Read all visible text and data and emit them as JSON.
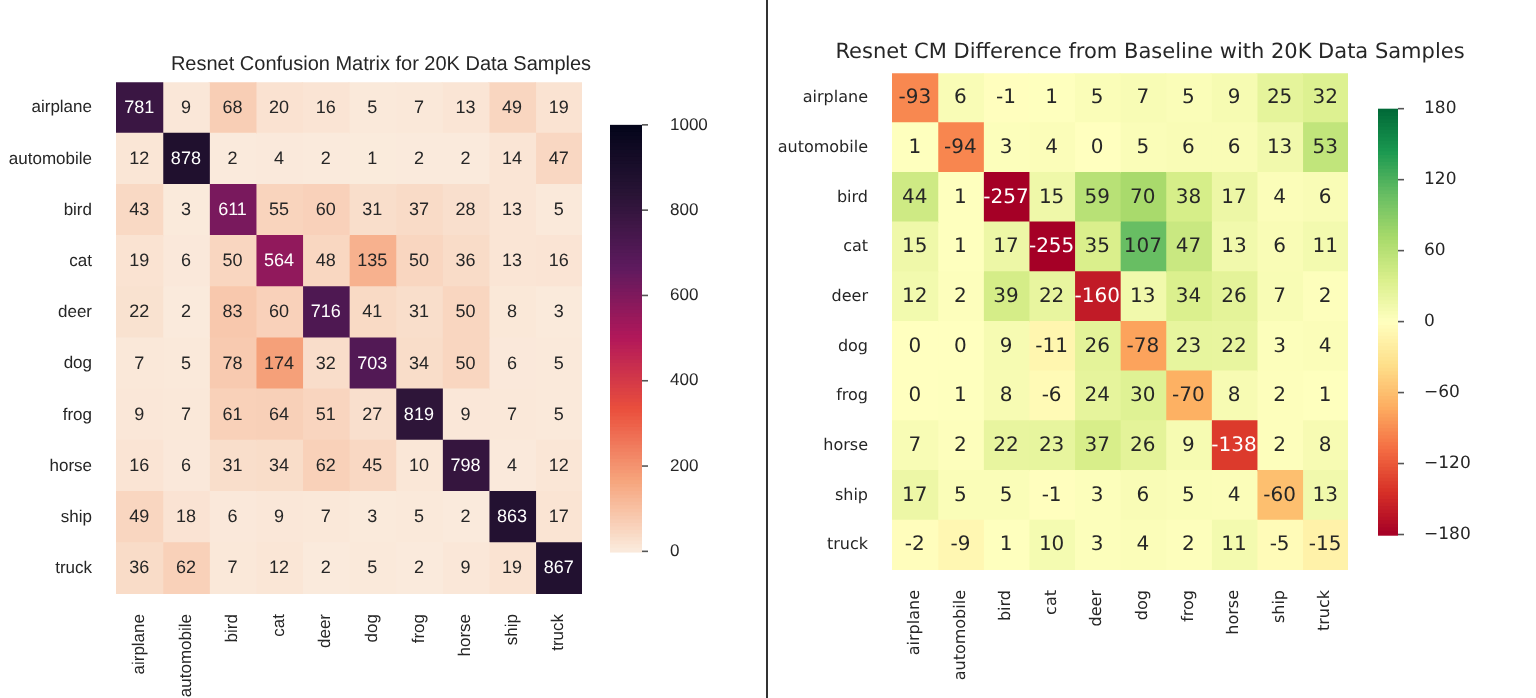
{
  "chart_data": [
    {
      "type": "heatmap",
      "title": "Resnet Confusion Matrix for 20K Data Samples",
      "categories": [
        "airplane",
        "automobile",
        "bird",
        "cat",
        "deer",
        "dog",
        "frog",
        "horse",
        "ship",
        "truck"
      ],
      "y_categories": [
        "airplane",
        "automobile",
        "bird",
        "cat",
        "deer",
        "dog",
        "frog",
        "horse",
        "ship",
        "truck"
      ],
      "cells": [
        [
          781,
          9,
          68,
          20,
          16,
          5,
          7,
          13,
          49,
          19
        ],
        [
          12,
          878,
          2,
          4,
          2,
          1,
          2,
          2,
          14,
          47
        ],
        [
          43,
          3,
          611,
          55,
          60,
          31,
          37,
          28,
          13,
          5
        ],
        [
          19,
          6,
          50,
          564,
          48,
          135,
          50,
          36,
          13,
          16
        ],
        [
          22,
          2,
          83,
          60,
          716,
          41,
          31,
          50,
          8,
          3
        ],
        [
          7,
          5,
          78,
          174,
          32,
          703,
          34,
          50,
          6,
          5
        ],
        [
          9,
          7,
          61,
          64,
          51,
          27,
          819,
          9,
          7,
          5
        ],
        [
          16,
          6,
          31,
          34,
          62,
          45,
          10,
          798,
          4,
          12
        ],
        [
          49,
          18,
          6,
          9,
          7,
          3,
          5,
          2,
          863,
          17
        ],
        [
          36,
          62,
          7,
          12,
          2,
          5,
          2,
          9,
          19,
          867
        ]
      ],
      "clim": [
        0,
        1000
      ],
      "cticks": [
        0,
        200,
        400,
        600,
        800,
        1000
      ],
      "data_labels": true
    },
    {
      "type": "heatmap",
      "title": "Resnet CM Difference from Baseline with 20K Data Samples",
      "categories": [
        "airplane",
        "automobile",
        "bird",
        "cat",
        "deer",
        "dog",
        "frog",
        "horse",
        "ship",
        "truck"
      ],
      "y_categories": [
        "airplane",
        "automobile",
        "bird",
        "cat",
        "deer",
        "dog",
        "frog",
        "horse",
        "ship",
        "truck"
      ],
      "cells": [
        [
          -93,
          6,
          -1,
          1,
          5,
          7,
          5,
          9,
          25,
          32
        ],
        [
          1,
          -94,
          3,
          4,
          0,
          5,
          6,
          6,
          13,
          53
        ],
        [
          44,
          1,
          -257,
          15,
          59,
          70,
          38,
          17,
          4,
          6
        ],
        [
          15,
          1,
          17,
          -255,
          35,
          107,
          47,
          13,
          6,
          11
        ],
        [
          12,
          2,
          39,
          22,
          -160,
          13,
          34,
          26,
          7,
          2
        ],
        [
          0,
          0,
          9,
          -11,
          26,
          -78,
          23,
          22,
          3,
          4
        ],
        [
          0,
          1,
          8,
          -6,
          24,
          30,
          -70,
          8,
          2,
          1
        ],
        [
          7,
          2,
          22,
          23,
          37,
          26,
          9,
          -138,
          2,
          8
        ],
        [
          17,
          5,
          5,
          -1,
          3,
          6,
          5,
          4,
          -60,
          13
        ],
        [
          -2,
          -9,
          1,
          10,
          3,
          4,
          2,
          11,
          -5,
          -15
        ]
      ],
      "clim": [
        -180,
        180
      ],
      "cticks": [
        {
          "value": -180,
          "label": "−180"
        },
        {
          "value": -120,
          "label": "−120"
        },
        {
          "value": -60,
          "label": "−60"
        },
        0,
        60,
        120,
        180
      ],
      "data_labels": true
    }
  ]
}
